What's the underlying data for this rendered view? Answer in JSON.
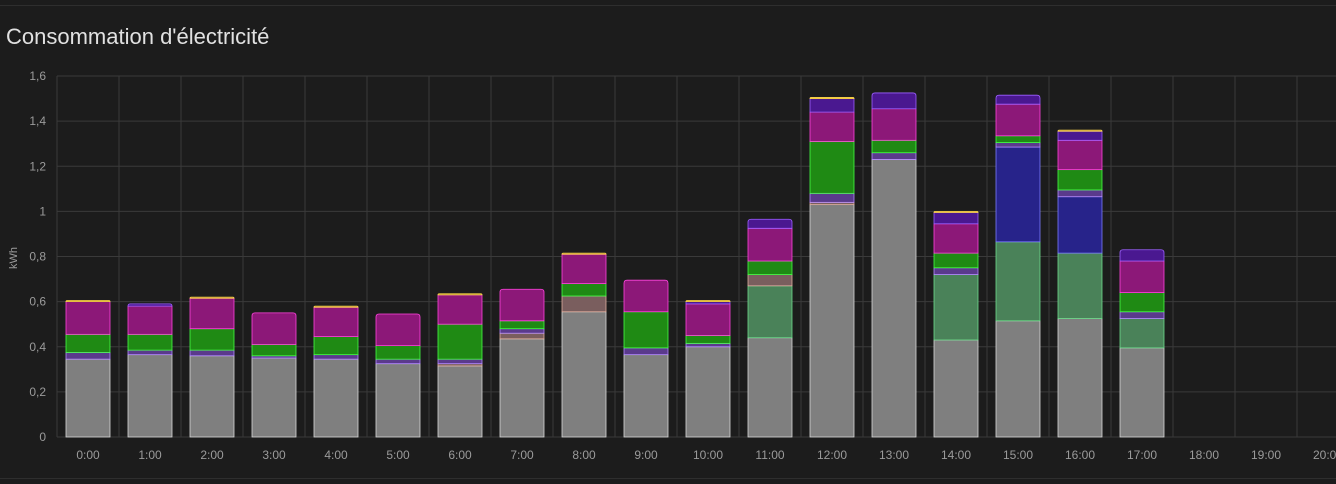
{
  "card": {
    "title": "Consommation d'électricité"
  },
  "chart_data": {
    "type": "bar",
    "stacked": true,
    "title": "Consommation d'électricité",
    "ylabel": "kWh",
    "xlabel": "",
    "ylim": [
      0,
      1.6
    ],
    "yticks": [
      0,
      0.2,
      0.4,
      0.6,
      0.8,
      1,
      1.2,
      1.4,
      1.6
    ],
    "ytick_labels": [
      "0",
      "0,2",
      "0,4",
      "0,6",
      "0,8",
      "1",
      "1,2",
      "1,4",
      "1,6"
    ],
    "categories": [
      "0:00",
      "1:00",
      "2:00",
      "3:00",
      "4:00",
      "5:00",
      "6:00",
      "7:00",
      "8:00",
      "9:00",
      "10:00",
      "11:00",
      "12:00",
      "13:00",
      "14:00",
      "15:00",
      "16:00",
      "17:00",
      "18:00",
      "19:00",
      "20:00"
    ],
    "grid": true,
    "legend": false,
    "series": [
      {
        "color": "#7f7f7f",
        "stroke": "#d9d9d9",
        "values": [
          0.345,
          0.365,
          0.36,
          0.35,
          0.345,
          0.325,
          0.315,
          0.435,
          0.555,
          0.365,
          0.4,
          0.44,
          1.03,
          1.23,
          0.43,
          0.515,
          0.525,
          0.395,
          0,
          0,
          0
        ]
      },
      {
        "color": "#4a8259",
        "stroke": "#6fdc8c",
        "values": [
          0,
          0,
          0,
          0,
          0,
          0,
          0,
          0,
          0,
          0,
          0,
          0.23,
          0,
          0,
          0.29,
          0.35,
          0.29,
          0.13,
          0,
          0,
          0
        ]
      },
      {
        "color": "#7a5e5e",
        "stroke": "#e0b0a0",
        "values": [
          0,
          0,
          0,
          0,
          0,
          0,
          0.01,
          0.025,
          0.07,
          0,
          0,
          0.05,
          0.01,
          0,
          0,
          0,
          0,
          0,
          0,
          0,
          0
        ]
      },
      {
        "color": "#27238a",
        "stroke": "#7c7cff",
        "values": [
          0,
          0,
          0,
          0,
          0,
          0,
          0,
          0,
          0,
          0,
          0,
          0,
          0,
          0,
          0,
          0.42,
          0.25,
          0,
          0,
          0,
          0
        ]
      },
      {
        "color": "#5a3a8c",
        "stroke": "#b58cff",
        "values": [
          0.03,
          0.02,
          0.025,
          0.01,
          0.02,
          0.02,
          0.02,
          0.02,
          0,
          0.03,
          0.015,
          0,
          0.04,
          0.03,
          0.03,
          0.02,
          0.03,
          0.03,
          0,
          0,
          0
        ]
      },
      {
        "color": "#1f8a14",
        "stroke": "#44ff44",
        "values": [
          0.08,
          0.07,
          0.095,
          0.05,
          0.08,
          0.06,
          0.155,
          0.035,
          0.055,
          0.16,
          0.035,
          0.06,
          0.23,
          0.055,
          0.065,
          0.03,
          0.09,
          0.085,
          0,
          0,
          0
        ]
      },
      {
        "color": "#8c1878",
        "stroke": "#ff44dd",
        "values": [
          0.145,
          0.125,
          0.135,
          0.14,
          0.13,
          0.14,
          0.13,
          0.14,
          0.13,
          0.14,
          0.14,
          0.145,
          0.13,
          0.14,
          0.13,
          0.14,
          0.13,
          0.14,
          0,
          0,
          0
        ]
      },
      {
        "color": "#4a1890",
        "stroke": "#9d60ff",
        "values": [
          0,
          0.01,
          0,
          0,
          0,
          0,
          0,
          0,
          0,
          0,
          0.01,
          0.04,
          0.06,
          0.07,
          0.05,
          0.04,
          0.04,
          0.05,
          0,
          0,
          0
        ]
      },
      {
        "color": "#9e7a2a",
        "stroke": "#ffd84a",
        "values": [
          0.005,
          0,
          0.005,
          0,
          0.005,
          0,
          0.005,
          0,
          0.005,
          0,
          0.005,
          0,
          0.005,
          0,
          0.005,
          0,
          0.005,
          0,
          0,
          0,
          0
        ]
      }
    ]
  }
}
